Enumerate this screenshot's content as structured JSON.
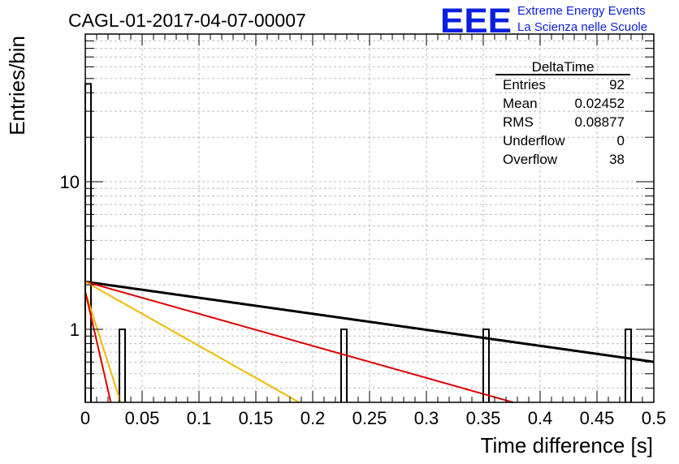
{
  "header": {
    "run_title": "CAGL-01-2017-04-07-00007",
    "logo_text": "EEE",
    "logo_line1": "Extreme Energy Events",
    "logo_line2": "La Scienza nelle Scuole"
  },
  "stats": {
    "title": "DeltaTime",
    "rows": [
      {
        "label": "Entries",
        "value": "92"
      },
      {
        "label": "Mean",
        "value": "0.02452"
      },
      {
        "label": "RMS",
        "value": "0.08877"
      },
      {
        "label": "Underflow",
        "value": "0"
      },
      {
        "label": "Overflow",
        "value": "38"
      }
    ]
  },
  "chart_data": {
    "type": "histogram",
    "xlabel": "Time difference [s]",
    "ylabel": "Entries/bin",
    "xlim": [
      0,
      0.5
    ],
    "ylim": [
      0.32,
      100
    ],
    "yscale": "log",
    "grid": true,
    "legend": "none",
    "x_ticks": [
      "0",
      "0.05",
      "0.1",
      "0.15",
      "0.2",
      "0.25",
      "0.3",
      "0.35",
      "0.4",
      "0.45",
      "0.5"
    ],
    "y_ticks": [
      {
        "value": 1,
        "label": "1"
      },
      {
        "value": 10,
        "label": "10"
      }
    ],
    "bin_width": 0.005,
    "bins": [
      {
        "x": 0.0,
        "count": 46
      },
      {
        "x": 0.03,
        "count": 1
      },
      {
        "x": 0.225,
        "count": 1
      },
      {
        "x": 0.35,
        "count": 1
      },
      {
        "x": 0.475,
        "count": 1
      }
    ],
    "fit_curves": [
      {
        "color": "#000000",
        "a": 2.1,
        "tau": 0.4
      },
      {
        "color": "#dd0000",
        "a": 2.1,
        "tau": 0.2
      },
      {
        "color": "#f5b800",
        "a": 2.1,
        "tau": 0.1
      },
      {
        "color": "#f5b800",
        "a": 1.8,
        "tau": 0.018
      },
      {
        "color": "#dd0000",
        "a": 1.8,
        "tau": 0.013
      }
    ]
  }
}
